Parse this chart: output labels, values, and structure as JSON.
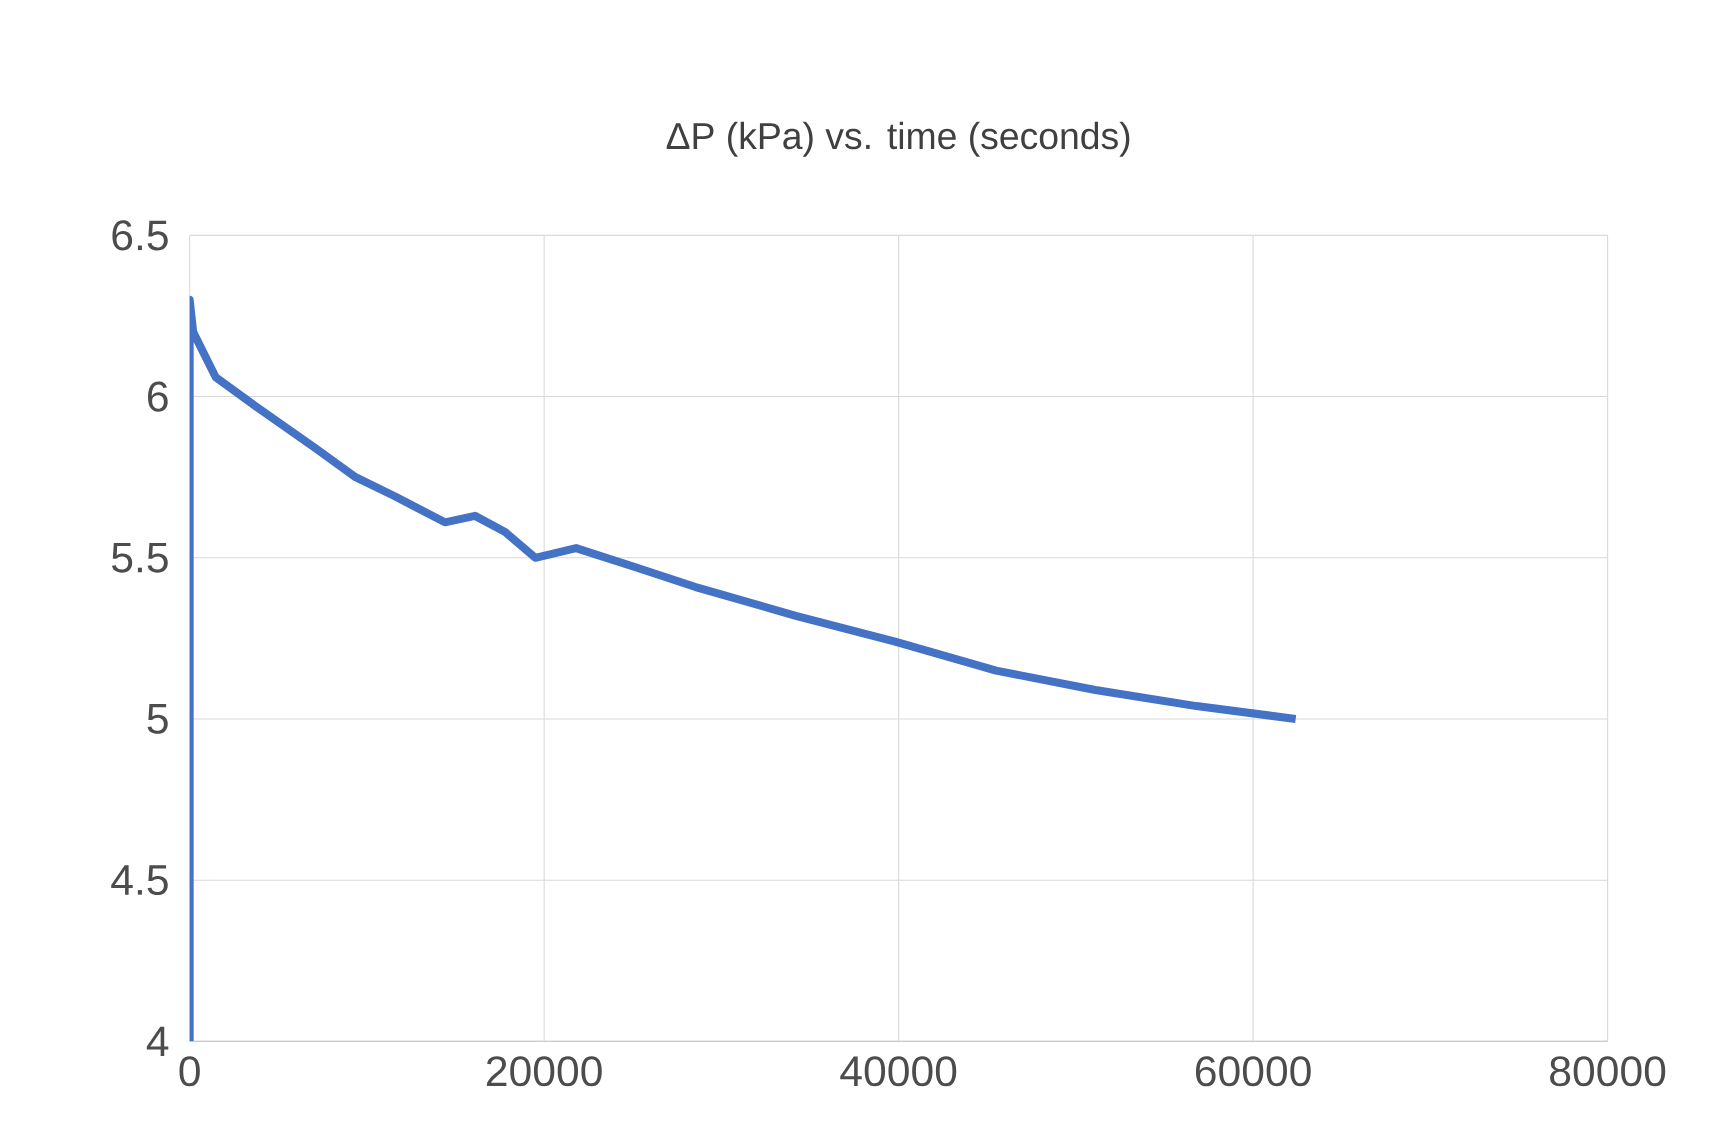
{
  "chart_data": {
    "type": "line",
    "title": "ΔP (kPa) vs. time (seconds)",
    "x": [
      0,
      0,
      200,
      1470,
      3720,
      7100,
      9360,
      11600,
      14400,
      16100,
      17800,
      19500,
      21800,
      25200,
      28500,
      34200,
      39800,
      45500,
      51100,
      56800,
      62400
    ],
    "series": [
      {
        "color": "#4472c4",
        "values": [
          4.0,
          6.3,
          6.2,
          6.06,
          5.97,
          5.84,
          5.75,
          5.69,
          5.61,
          5.63,
          5.58,
          5.5,
          5.53,
          5.47,
          5.41,
          5.32,
          5.24,
          5.15,
          5.09,
          5.04,
          5.0
        ]
      }
    ],
    "xlim": [
      0,
      80000
    ],
    "xticks": [
      0,
      20000,
      40000,
      60000,
      80000
    ],
    "ylim": [
      4,
      6.5
    ],
    "yticks": [
      4,
      4.5,
      5,
      5.5,
      6,
      6.5
    ],
    "grid": true,
    "marker": "none",
    "line_style": "solid"
  }
}
